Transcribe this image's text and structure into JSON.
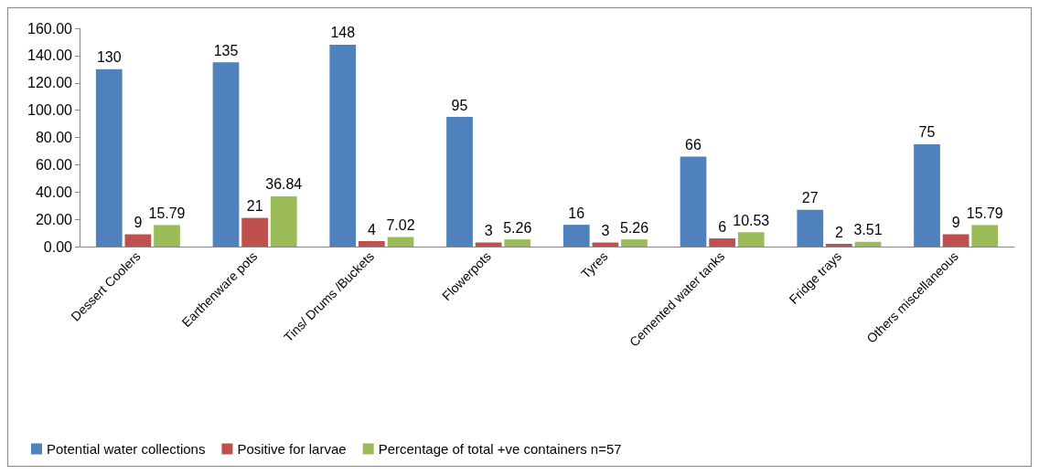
{
  "chart_data": {
    "type": "bar",
    "categories": [
      "Dessert Coolers",
      "Earthenware pots",
      "Tins/ Drums /Buckets",
      "Flowerpots",
      "Tyres",
      "Cemented water tanks",
      "Fridge trays",
      "Others miscellaneous"
    ],
    "series": [
      {
        "name": "Potential water collections",
        "color": "#4f81bd",
        "values": [
          130,
          135,
          148,
          95,
          16,
          66,
          27,
          75
        ]
      },
      {
        "name": "Positive for larvae",
        "color": "#c0504d",
        "values": [
          9,
          21,
          4,
          3,
          3,
          6,
          2,
          9
        ]
      },
      {
        "name": "Percentage of total +ve containers n=57",
        "color": "#9bbb59",
        "values": [
          15.79,
          36.84,
          7.02,
          5.26,
          5.26,
          10.53,
          3.51,
          15.79
        ]
      }
    ],
    "ylim": [
      0,
      160
    ],
    "yticks": [
      {
        "value": 0,
        "label": "0.00"
      },
      {
        "value": 20,
        "label": "20.00"
      },
      {
        "value": 40,
        "label": "40.00"
      },
      {
        "value": 60,
        "label": "60.00"
      },
      {
        "value": 80,
        "label": "80.00"
      },
      {
        "value": 100,
        "label": "100.00"
      },
      {
        "value": 120,
        "label": "120.00"
      },
      {
        "value": 140,
        "label": "140.00"
      },
      {
        "value": 160,
        "label": "160.00"
      }
    ],
    "data_labels": true,
    "grid": false,
    "legend": "bottom"
  }
}
